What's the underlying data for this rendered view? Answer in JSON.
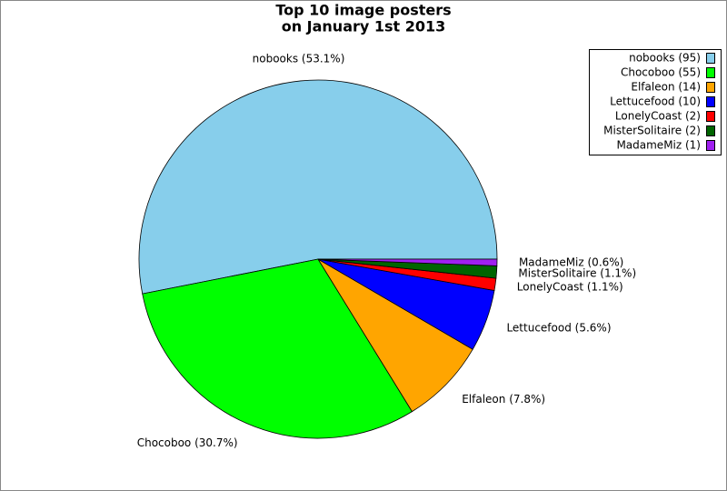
{
  "chart_data": {
    "type": "pie",
    "title": [
      "Top 10 image posters",
      "on January 1st 2013"
    ],
    "categories": [
      "nobooks",
      "Chocoboo",
      "Elfaleon",
      "Lettucefood",
      "LonelyCoast",
      "MisterSolitaire",
      "MadameMiz"
    ],
    "values": [
      53.1,
      30.7,
      7.8,
      5.6,
      1.1,
      1.1,
      0.6
    ],
    "value_labels": [
      "nobooks (53.1%)",
      "Chocoboo (30.7%)",
      "Elfaleon (7.8%)",
      "Lettucefood (5.6%)",
      "LonelyCoast (1.1%)",
      "MisterSolitaire (1.1%)",
      "MadameMiz (0.6%)"
    ],
    "legend": [
      "nobooks (95)",
      "Chocoboo (55)",
      "Elfaleon (14)",
      "Lettucefood (10)",
      "LonelyCoast (2)",
      "MisterSolitaire (2)",
      "MadameMiz (1)"
    ],
    "colors": [
      "#87ceeb",
      "#00ff00",
      "#ffa500",
      "#0000ff",
      "#ff0000",
      "#006400",
      "#a020f0"
    ],
    "legend_position": "upper right"
  }
}
